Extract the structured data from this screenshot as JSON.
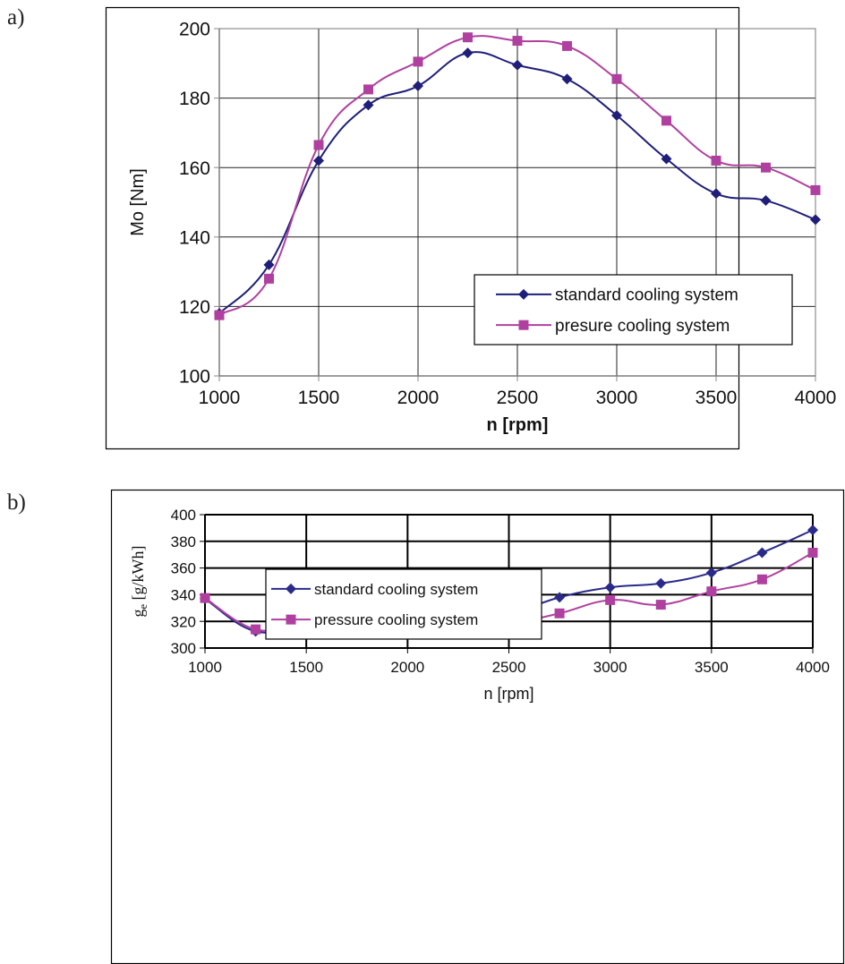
{
  "panels": {
    "a": "a)",
    "b": "b)"
  },
  "chart_data": [
    {
      "type": "line",
      "xlabel": "n  [rpm]",
      "ylabel": "Mo  [Nm]",
      "xlim": [
        1000,
        4000
      ],
      "ylim": [
        100,
        200
      ],
      "xticks": [
        1000,
        1500,
        2000,
        2500,
        3000,
        3500,
        4000
      ],
      "yticks": [
        100,
        120,
        140,
        160,
        180,
        200
      ],
      "grid": true,
      "legend_position": "bottom-right",
      "x": [
        1000,
        1250,
        1500,
        1750,
        2000,
        2250,
        2500,
        2750,
        3000,
        3250,
        3500,
        3750,
        4000
      ],
      "series": [
        {
          "name": "standard cooling system",
          "marker": "diamond",
          "color": "#1f1f7a",
          "values": [
            118,
            132,
            162,
            178,
            183.5,
            193,
            189.5,
            185.5,
            175,
            162.5,
            152.5,
            150.5,
            145
          ]
        },
        {
          "name": "presure cooling system",
          "marker": "square",
          "color": "#b0409f",
          "values": [
            117.5,
            128,
            166.5,
            182.5,
            190.5,
            197.5,
            196.5,
            195,
            185.5,
            173.5,
            162,
            160,
            153.5
          ]
        }
      ]
    },
    {
      "type": "line",
      "xlabel": "n  [rpm]",
      "ylabel": "g",
      "ylabel_sub": "e",
      "ylabel_unit": " [g/kWh]",
      "xlim": [
        1000,
        4000
      ],
      "ylim": [
        300,
        400
      ],
      "xticks": [
        1000,
        1500,
        2000,
        2500,
        3000,
        3500,
        4000
      ],
      "yticks": [
        300,
        320,
        340,
        360,
        380,
        400
      ],
      "grid": true,
      "legend_position": "top-left",
      "x": [
        1000,
        1250,
        1500,
        1750,
        2000,
        2250,
        2500,
        2750,
        3000,
        3250,
        3500,
        3750,
        4000
      ],
      "series": [
        {
          "name": "standard  cooling  system",
          "marker": "diamond",
          "color": "#2a2a8a",
          "values": [
            337,
            312.5,
            319,
            327.5,
            330,
            320,
            325.5,
            338,
            345.5,
            348.5,
            356.5,
            371.5,
            388.5
          ]
        },
        {
          "name": "pressure  cooling  system",
          "marker": "square",
          "color": "#b0409f",
          "values": [
            337.5,
            314,
            318.5,
            323.5,
            326,
            316.5,
            318.5,
            326,
            336,
            332.5,
            342.5,
            351.5,
            371.5
          ]
        }
      ]
    }
  ]
}
